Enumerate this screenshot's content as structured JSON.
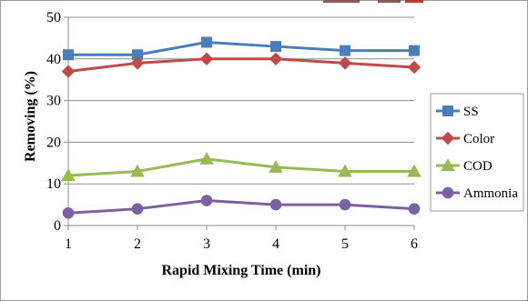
{
  "chart_data": {
    "type": "line",
    "x": [
      1,
      2,
      3,
      4,
      5,
      6
    ],
    "xlabel": "Rapid Mixing Time (min)",
    "ylabel": "Removing (%)",
    "xlim": [
      1,
      6
    ],
    "ylim": [
      0,
      50
    ],
    "yticks": [
      0,
      10,
      20,
      30,
      40,
      50
    ],
    "grid": "horizontal",
    "legend_position": "right",
    "series": [
      {
        "name": "SS",
        "color": "#4a7ebb",
        "marker": "square",
        "values": [
          41,
          41,
          44,
          43,
          42,
          42
        ]
      },
      {
        "name": "Color",
        "color": "#be4b48",
        "marker": "diamond",
        "values": [
          37,
          39,
          40,
          40,
          39,
          38
        ]
      },
      {
        "name": "COD",
        "color": "#98b954",
        "marker": "triangle",
        "values": [
          12,
          13,
          16,
          14,
          13,
          13
        ]
      },
      {
        "name": "Ammonia",
        "color": "#7d60a0",
        "marker": "circle",
        "values": [
          3,
          4,
          6,
          5,
          5,
          4
        ]
      }
    ]
  }
}
